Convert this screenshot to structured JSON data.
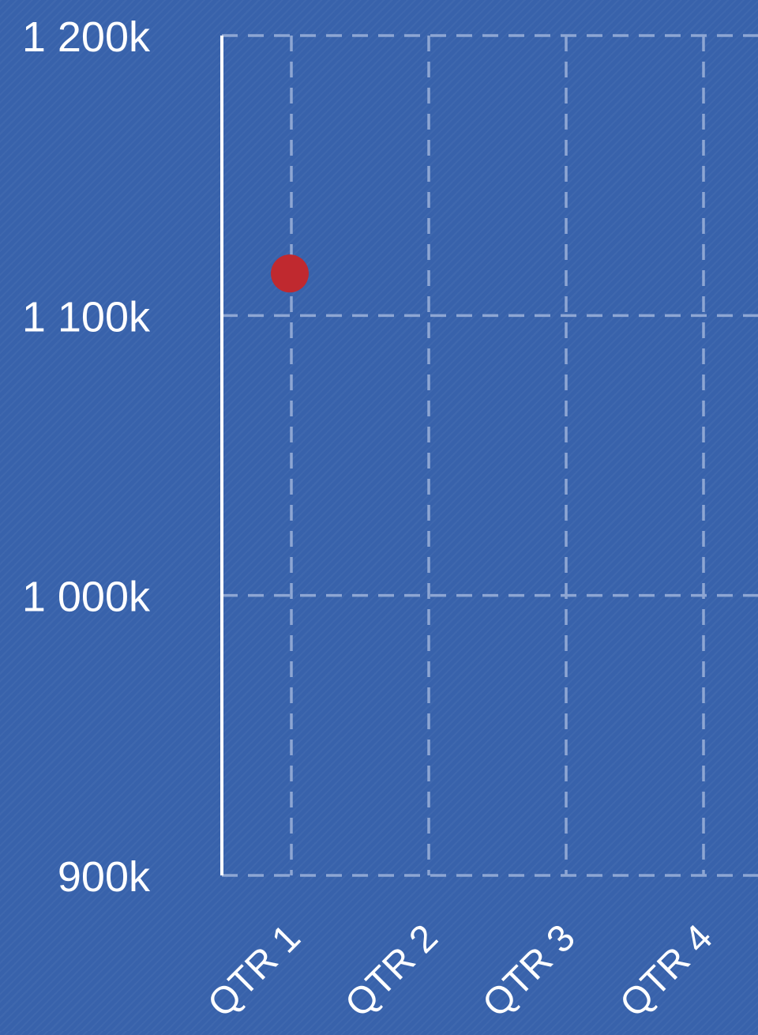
{
  "chart_data": {
    "type": "scatter",
    "title": "",
    "xlabel": "",
    "ylabel": "",
    "categories": [
      "QTR 1",
      "QTR 2",
      "QTR 3",
      "QTR 4"
    ],
    "ylim": [
      900,
      1200
    ],
    "y_ticks": [
      900,
      1000,
      1100,
      1200
    ],
    "y_tick_labels": [
      "900k",
      "1 000k",
      "1 100k",
      "1 200k"
    ],
    "grid": true,
    "legend": "none",
    "series": [
      {
        "color": "#c0292f",
        "points": [
          {
            "x": "QTR 1",
            "y": 1115
          }
        ]
      }
    ]
  },
  "colors": {
    "background": "#3862ab",
    "axis": "#ffffff",
    "grid": "#8ea6d3",
    "text": "#ffffff",
    "point": "#c0292f"
  }
}
